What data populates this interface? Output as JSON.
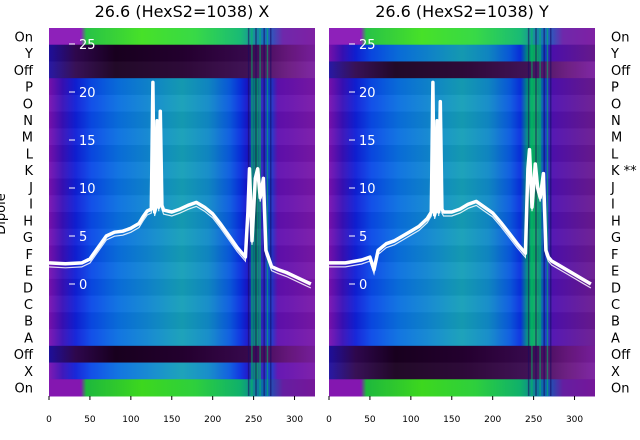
{
  "chart_data": [
    {
      "type": "heatmap",
      "title": "26.6 (HexS2=1038) X",
      "ylabel": "Dipole",
      "row_labels_top_to_bottom": [
        "On",
        "Y",
        "Off",
        "P",
        "O",
        "N",
        "M",
        "L",
        "K",
        "J",
        "I",
        "H",
        "G",
        "F",
        "E",
        "D",
        "C",
        "B",
        "A",
        "Off",
        "X",
        "On"
      ],
      "x_ticks": [
        0,
        50,
        100,
        150,
        200,
        250,
        300
      ],
      "xlim": [
        0,
        325
      ],
      "overlay_ticks": [
        25,
        20,
        15,
        10,
        5,
        0
      ],
      "overlay_series": {
        "x": [
          0,
          20,
          40,
          50,
          60,
          70,
          80,
          90,
          100,
          110,
          115,
          120,
          125,
          127,
          128,
          129,
          130,
          132,
          134,
          136,
          138,
          140,
          150,
          160,
          170,
          180,
          190,
          200,
          210,
          220,
          230,
          240,
          243,
          245,
          248,
          252,
          255,
          258,
          262,
          265,
          268,
          272,
          280,
          290,
          300,
          310,
          320
        ],
        "y": [
          2.2,
          2.1,
          2.2,
          2.6,
          3.8,
          5.0,
          5.4,
          5.5,
          5.8,
          6.3,
          7.0,
          7.6,
          7.8,
          21.0,
          12.0,
          7.5,
          7.8,
          17.0,
          8.0,
          18.0,
          8.2,
          7.7,
          7.5,
          7.8,
          8.2,
          8.5,
          8.0,
          7.3,
          6.2,
          5.0,
          3.8,
          2.8,
          7.5,
          12.0,
          4.5,
          11.0,
          12.0,
          9.0,
          11.0,
          3.5,
          2.8,
          1.8,
          1.5,
          1.2,
          0.8,
          0.4,
          0.0
        ]
      }
    },
    {
      "type": "heatmap",
      "title": "26.6 (HexS2=1038) Y",
      "row_labels_top_to_bottom": [
        "On",
        "Y",
        "Off",
        "P",
        "O",
        "N",
        "M",
        "L",
        "K **",
        "J",
        "I",
        "H",
        "G",
        "F",
        "E",
        "D",
        "C",
        "B",
        "A",
        "Off",
        "X",
        "On"
      ],
      "x_ticks": [
        0,
        50,
        100,
        150,
        200,
        250,
        300
      ],
      "xlim": [
        0,
        325
      ],
      "overlay_ticks": [
        25,
        20,
        15,
        10,
        5,
        0
      ],
      "overlay_series": {
        "x": [
          0,
          20,
          40,
          50,
          55,
          60,
          70,
          80,
          90,
          100,
          110,
          120,
          125,
          127,
          128,
          129,
          130,
          132,
          134,
          136,
          138,
          140,
          150,
          160,
          170,
          180,
          190,
          200,
          210,
          220,
          230,
          240,
          243,
          245,
          248,
          252,
          255,
          258,
          262,
          265,
          268,
          272,
          280,
          290,
          300,
          310,
          320
        ],
        "y": [
          2.2,
          2.2,
          2.5,
          2.8,
          1.5,
          3.5,
          4.2,
          4.5,
          5.0,
          5.5,
          6.0,
          6.8,
          7.5,
          21.0,
          12.0,
          7.2,
          7.5,
          17.0,
          7.5,
          19.0,
          7.8,
          7.5,
          7.5,
          7.8,
          8.3,
          8.6,
          8.0,
          7.4,
          6.4,
          5.3,
          4.2,
          3.2,
          12.0,
          14.0,
          8.0,
          12.5,
          10.0,
          9.0,
          11.5,
          3.5,
          2.8,
          2.4,
          2.0,
          1.5,
          1.0,
          0.5,
          0.0
        ]
      }
    }
  ]
}
